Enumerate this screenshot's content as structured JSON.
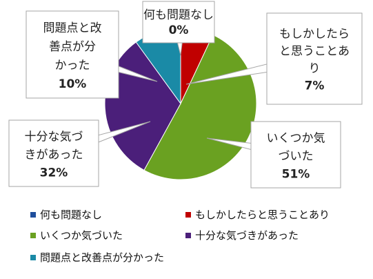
{
  "chart_data": {
    "type": "pie",
    "categories": [
      "何も問題なし",
      "もしかしたらと思うことあり",
      "いくつか気づいた",
      "十分な気づきがあった",
      "問題点と改善点が分かった"
    ],
    "values": [
      0,
      7,
      51,
      32,
      10
    ],
    "unit": "%",
    "colors": [
      "#1f4e9c",
      "#c00000",
      "#6aa121",
      "#4b1f7a",
      "#1a8aa6"
    ],
    "legend_position": "bottom",
    "data_labels": [
      {
        "lines": [
          "何も問題なし"
        ],
        "pct": "0%"
      },
      {
        "lines": [
          "もしかしたら",
          "と思うことあ",
          "り"
        ],
        "pct": "7%"
      },
      {
        "lines": [
          "いくつか気",
          "づいた"
        ],
        "pct": "51%"
      },
      {
        "lines": [
          "十分な気づ",
          "きがあった"
        ],
        "pct": "32%"
      },
      {
        "lines": [
          "問題点と改",
          "善点が分",
          "かった"
        ],
        "pct": "10%"
      }
    ]
  }
}
